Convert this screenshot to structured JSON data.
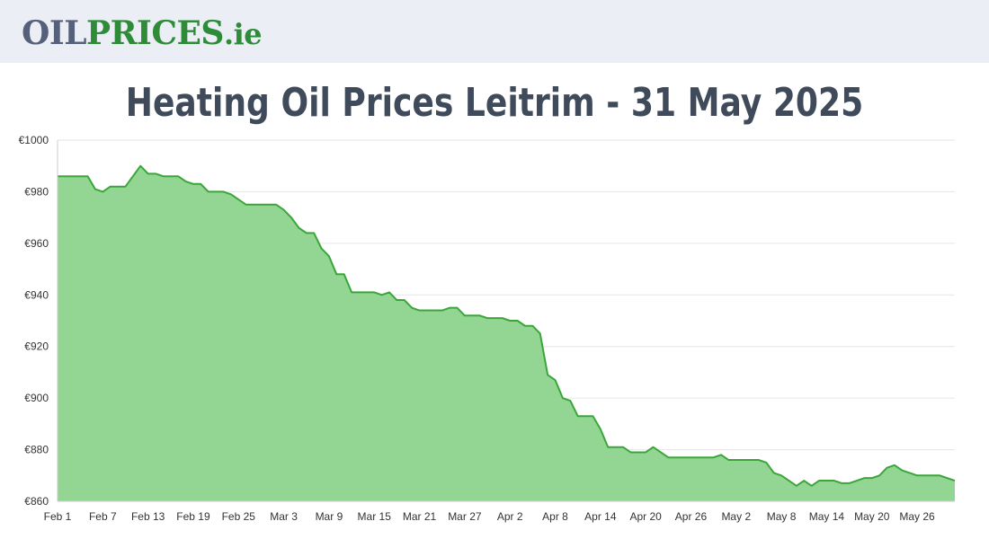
{
  "header": {
    "logo_oil": "OIL",
    "logo_prices": "PRICES",
    "logo_ie": ".ie",
    "logo_colors": {
      "oil": "#55607a",
      "prices": "#2e8c39"
    }
  },
  "page_title": "Heating Oil Prices Leitrim - 31 May 2025",
  "chart_data": {
    "type": "area",
    "title": "",
    "xlabel": "",
    "ylabel": "",
    "y_prefix": "€",
    "ylim": [
      860,
      1000
    ],
    "yticks": [
      860,
      880,
      900,
      920,
      940,
      960,
      980,
      1000
    ],
    "grid": true,
    "legend": "none",
    "line_color": "#3aa63a",
    "fill_color": "#93d693",
    "x_tick_labels": [
      "Feb 1",
      "Feb 7",
      "Feb 13",
      "Feb 19",
      "Feb 25",
      "Mar 3",
      "Mar 9",
      "Mar 15",
      "Mar 21",
      "Mar 27",
      "Apr 2",
      "Apr 8",
      "Apr 14",
      "Apr 20",
      "Apr 26",
      "May 2",
      "May 8",
      "May 14",
      "May 20",
      "May 26"
    ],
    "x_tick_step_days": 6,
    "x": [
      "Feb 1",
      "Feb 2",
      "Feb 3",
      "Feb 4",
      "Feb 5",
      "Feb 6",
      "Feb 7",
      "Feb 8",
      "Feb 9",
      "Feb 10",
      "Feb 11",
      "Feb 12",
      "Feb 13",
      "Feb 14",
      "Feb 15",
      "Feb 16",
      "Feb 17",
      "Feb 18",
      "Feb 19",
      "Feb 20",
      "Feb 21",
      "Feb 22",
      "Feb 23",
      "Feb 24",
      "Feb 25",
      "Feb 26",
      "Feb 27",
      "Feb 28",
      "Mar 1",
      "Mar 2",
      "Mar 3",
      "Mar 4",
      "Mar 5",
      "Mar 6",
      "Mar 7",
      "Mar 8",
      "Mar 9",
      "Mar 10",
      "Mar 11",
      "Mar 12",
      "Mar 13",
      "Mar 14",
      "Mar 15",
      "Mar 16",
      "Mar 17",
      "Mar 18",
      "Mar 19",
      "Mar 20",
      "Mar 21",
      "Mar 22",
      "Mar 23",
      "Mar 24",
      "Mar 25",
      "Mar 26",
      "Mar 27",
      "Mar 28",
      "Mar 29",
      "Mar 30",
      "Mar 31",
      "Apr 1",
      "Apr 2",
      "Apr 3",
      "Apr 4",
      "Apr 5",
      "Apr 6",
      "Apr 7",
      "Apr 8",
      "Apr 9",
      "Apr 10",
      "Apr 11",
      "Apr 12",
      "Apr 13",
      "Apr 14",
      "Apr 15",
      "Apr 16",
      "Apr 17",
      "Apr 18",
      "Apr 19",
      "Apr 20",
      "Apr 21",
      "Apr 22",
      "Apr 23",
      "Apr 24",
      "Apr 25",
      "Apr 26",
      "Apr 27",
      "Apr 28",
      "Apr 29",
      "Apr 30",
      "May 1",
      "May 2",
      "May 3",
      "May 4",
      "May 5",
      "May 6",
      "May 7",
      "May 8",
      "May 9",
      "May 10",
      "May 11",
      "May 12",
      "May 13",
      "May 14",
      "May 15",
      "May 16",
      "May 17",
      "May 18",
      "May 19",
      "May 20",
      "May 21",
      "May 22",
      "May 23",
      "May 24",
      "May 25",
      "May 26",
      "May 27",
      "May 28",
      "May 29",
      "May 30",
      "May 31"
    ],
    "values": [
      986,
      986,
      986,
      986,
      986,
      981,
      980,
      982,
      982,
      982,
      986,
      990,
      987,
      987,
      986,
      986,
      986,
      984,
      983,
      983,
      980,
      980,
      980,
      979,
      977,
      975,
      975,
      975,
      975,
      975,
      973,
      970,
      966,
      964,
      964,
      958,
      955,
      948,
      948,
      941,
      941,
      941,
      941,
      940,
      941,
      938,
      938,
      935,
      934,
      934,
      934,
      934,
      935,
      935,
      932,
      932,
      932,
      931,
      931,
      931,
      930,
      930,
      928,
      928,
      925,
      909,
      907,
      900,
      899,
      893,
      893,
      893,
      888,
      881,
      881,
      881,
      879,
      879,
      879,
      881,
      879,
      877,
      877,
      877,
      877,
      877,
      877,
      877,
      878,
      876,
      876,
      876,
      876,
      876,
      875,
      871,
      870,
      868,
      866,
      868,
      866,
      868,
      868,
      868,
      867,
      867,
      868,
      869,
      869,
      870,
      873,
      874,
      872,
      871,
      870,
      870,
      870,
      870,
      869,
      868
    ]
  }
}
